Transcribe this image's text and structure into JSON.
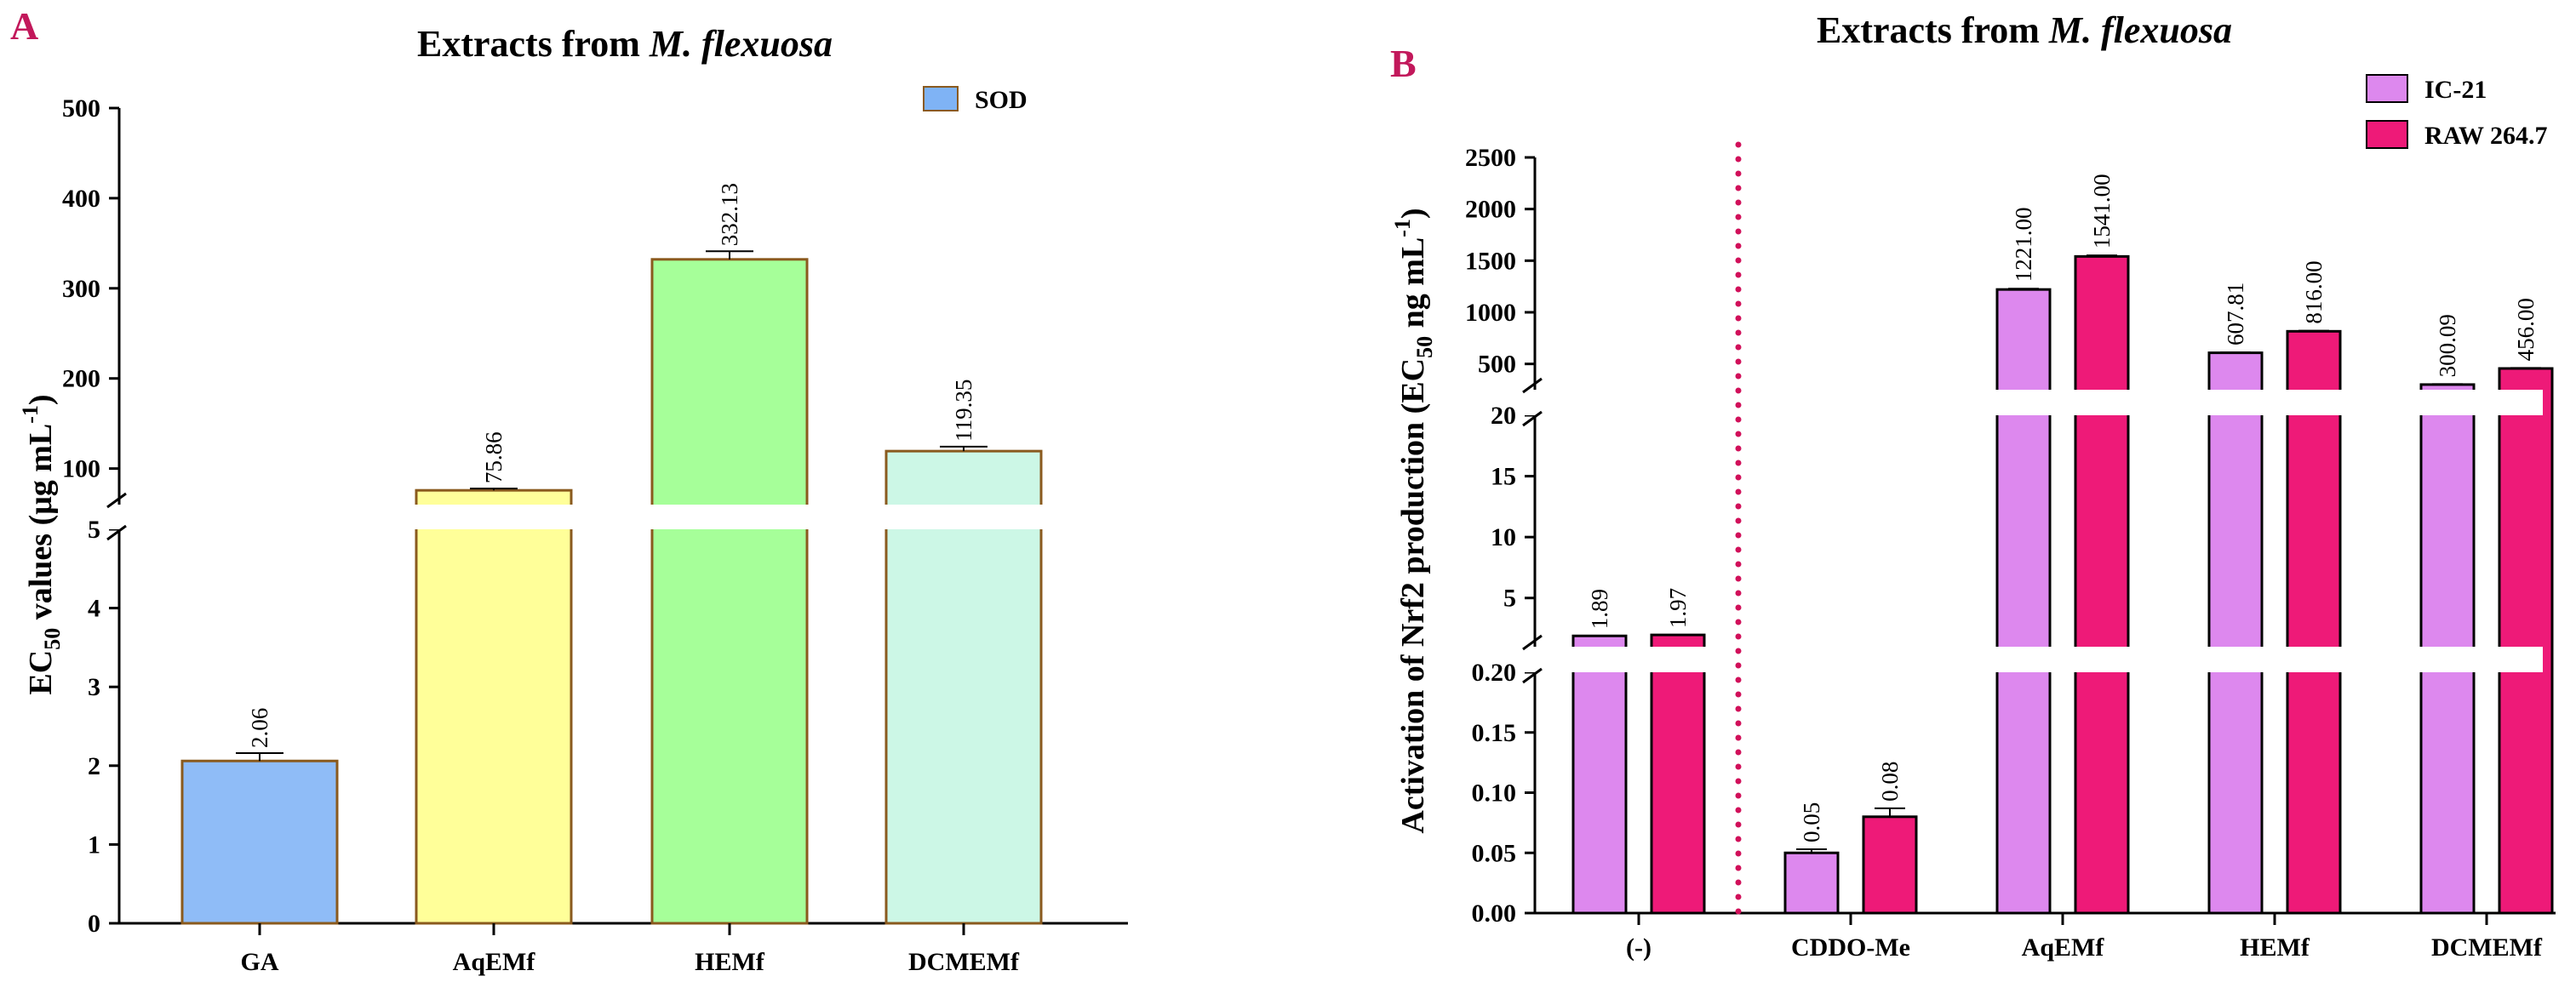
{
  "colors": {
    "panel_letter": "#c2185b",
    "gap": "#ffffff",
    "dotted": "#d1105a"
  },
  "chart_data": [
    {
      "panel": "A",
      "type": "bar",
      "title": "Extracts from M. flexuosa",
      "title_plain": "Extracts from ",
      "title_italic": "M. flexuosa",
      "ylabel": "EC50 values (μg mL-1)",
      "ylabel_parts": {
        "a": "EC",
        "b": "50",
        "c": " values (μg mL",
        "d": "-1",
        "e": ")"
      },
      "xlabel": "",
      "axis_break": true,
      "ylim_lower": [
        0,
        5
      ],
      "yticks_lower": [
        0,
        1,
        2,
        3,
        4,
        5
      ],
      "ylim_upper": [
        60,
        500
      ],
      "yticks_upper": [
        100,
        200,
        300,
        400,
        500
      ],
      "legend": [
        {
          "name": "SOD",
          "color": "#7fb3f5"
        }
      ],
      "categories": [
        "GA",
        "AqEMf",
        "HEMf",
        "DCMEMf"
      ],
      "values": [
        2.06,
        75.86,
        332.13,
        119.35
      ],
      "errors": [
        0.1,
        2,
        9,
        5
      ],
      "labels": [
        "2.06",
        "75.86",
        "332.13",
        "119.35"
      ],
      "colors": [
        "#8fbcf7",
        "#ffff99",
        "#a6ff99",
        "#ccf7e6"
      ]
    },
    {
      "panel": "B",
      "type": "bar",
      "title": "Extracts from M. flexuosa",
      "title_plain": "Extracts from ",
      "title_italic": "M. flexuosa",
      "ylabel": "Activation of Nrf2 production (EC50 ng mL-1)",
      "ylabel_parts": {
        "a": "Activation of Nrf2 production (EC",
        "b": "50",
        "c": " ng mL",
        "d": "-1",
        "e": ")"
      },
      "xlabel": "",
      "axis_break": true,
      "ylim_lower": [
        0,
        0.2
      ],
      "yticks_lower": [
        "0.00",
        "0.05",
        "0.10",
        "0.15",
        "0.20"
      ],
      "ylim_middle": [
        1,
        20
      ],
      "yticks_middle": [
        5,
        10,
        15,
        20
      ],
      "ylim_upper": [
        250,
        2500
      ],
      "yticks_upper": [
        500,
        1000,
        1500,
        2000,
        2500
      ],
      "categories": [
        "(-)",
        "CDDO-Me",
        "AqEMf",
        "HEMf",
        "DCMEMf"
      ],
      "series": [
        {
          "name": "IC-21",
          "color": "#dd88ee",
          "values": [
            1.89,
            0.05,
            1221.0,
            607.81,
            300.09
          ],
          "errors": [
            0,
            0.003,
            8,
            5,
            4
          ],
          "labels": [
            "1.89",
            "0.05",
            "1221.00",
            "607.81",
            "300.09"
          ]
        },
        {
          "name": "RAW 264.7",
          "color": "#ee1a78",
          "values": [
            1.97,
            0.08,
            1541.0,
            816.0,
            456.0
          ],
          "errors": [
            0,
            0.007,
            10,
            6,
            5
          ],
          "labels": [
            "1.97",
            "0.08",
            "1541.00",
            "816.00",
            "456.00"
          ]
        }
      ]
    }
  ]
}
